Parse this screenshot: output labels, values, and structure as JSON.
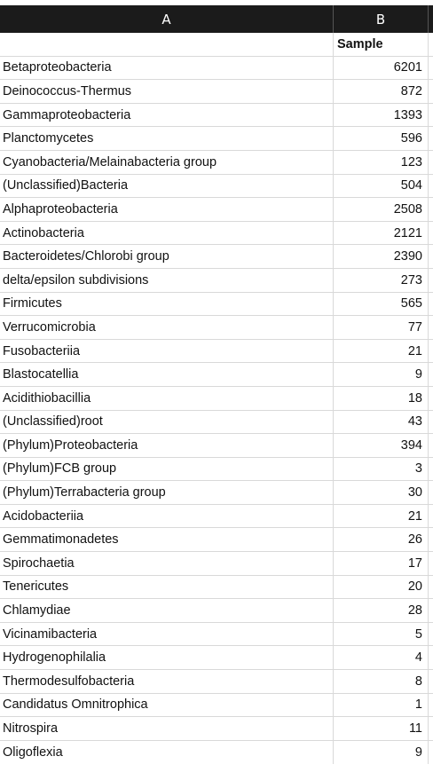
{
  "columns": {
    "a": "A",
    "b": "B"
  },
  "header": {
    "col_b_title": "Sample"
  },
  "rows": [
    {
      "name": "Betaproteobacteria",
      "value": "6201"
    },
    {
      "name": "Deinococcus-Thermus",
      "value": "872"
    },
    {
      "name": "Gammaproteobacteria",
      "value": "1393"
    },
    {
      "name": "Planctomycetes",
      "value": "596"
    },
    {
      "name": "Cyanobacteria/Melainabacteria group",
      "value": "123"
    },
    {
      "name": "(Unclassified)Bacteria",
      "value": "504"
    },
    {
      "name": "Alphaproteobacteria",
      "value": "2508"
    },
    {
      "name": "Actinobacteria",
      "value": "2121"
    },
    {
      "name": "Bacteroidetes/Chlorobi group",
      "value": "2390"
    },
    {
      "name": "delta/epsilon subdivisions",
      "value": "273"
    },
    {
      "name": "Firmicutes",
      "value": "565"
    },
    {
      "name": "Verrucomicrobia",
      "value": "77"
    },
    {
      "name": "Fusobacteriia",
      "value": "21"
    },
    {
      "name": "Blastocatellia",
      "value": "9"
    },
    {
      "name": "Acidithiobacillia",
      "value": "18"
    },
    {
      "name": "(Unclassified)root",
      "value": "43"
    },
    {
      "name": "(Phylum)Proteobacteria",
      "value": "394"
    },
    {
      "name": "(Phylum)FCB group",
      "value": "3"
    },
    {
      "name": "(Phylum)Terrabacteria group",
      "value": "30"
    },
    {
      "name": "Acidobacteriia",
      "value": "21"
    },
    {
      "name": "Gemmatimonadetes",
      "value": "26"
    },
    {
      "name": "Spirochaetia",
      "value": "17"
    },
    {
      "name": "Tenericutes",
      "value": "20"
    },
    {
      "name": "Chlamydiae",
      "value": "28"
    },
    {
      "name": "Vicinamibacteria",
      "value": "5"
    },
    {
      "name": "Hydrogenophilalia",
      "value": "4"
    },
    {
      "name": "Thermodesulfobacteria",
      "value": "8"
    },
    {
      "name": "Candidatus Omnitrophica",
      "value": "1"
    },
    {
      "name": "Nitrospira",
      "value": "11"
    },
    {
      "name": "Oligoflexia",
      "value": "9"
    }
  ]
}
